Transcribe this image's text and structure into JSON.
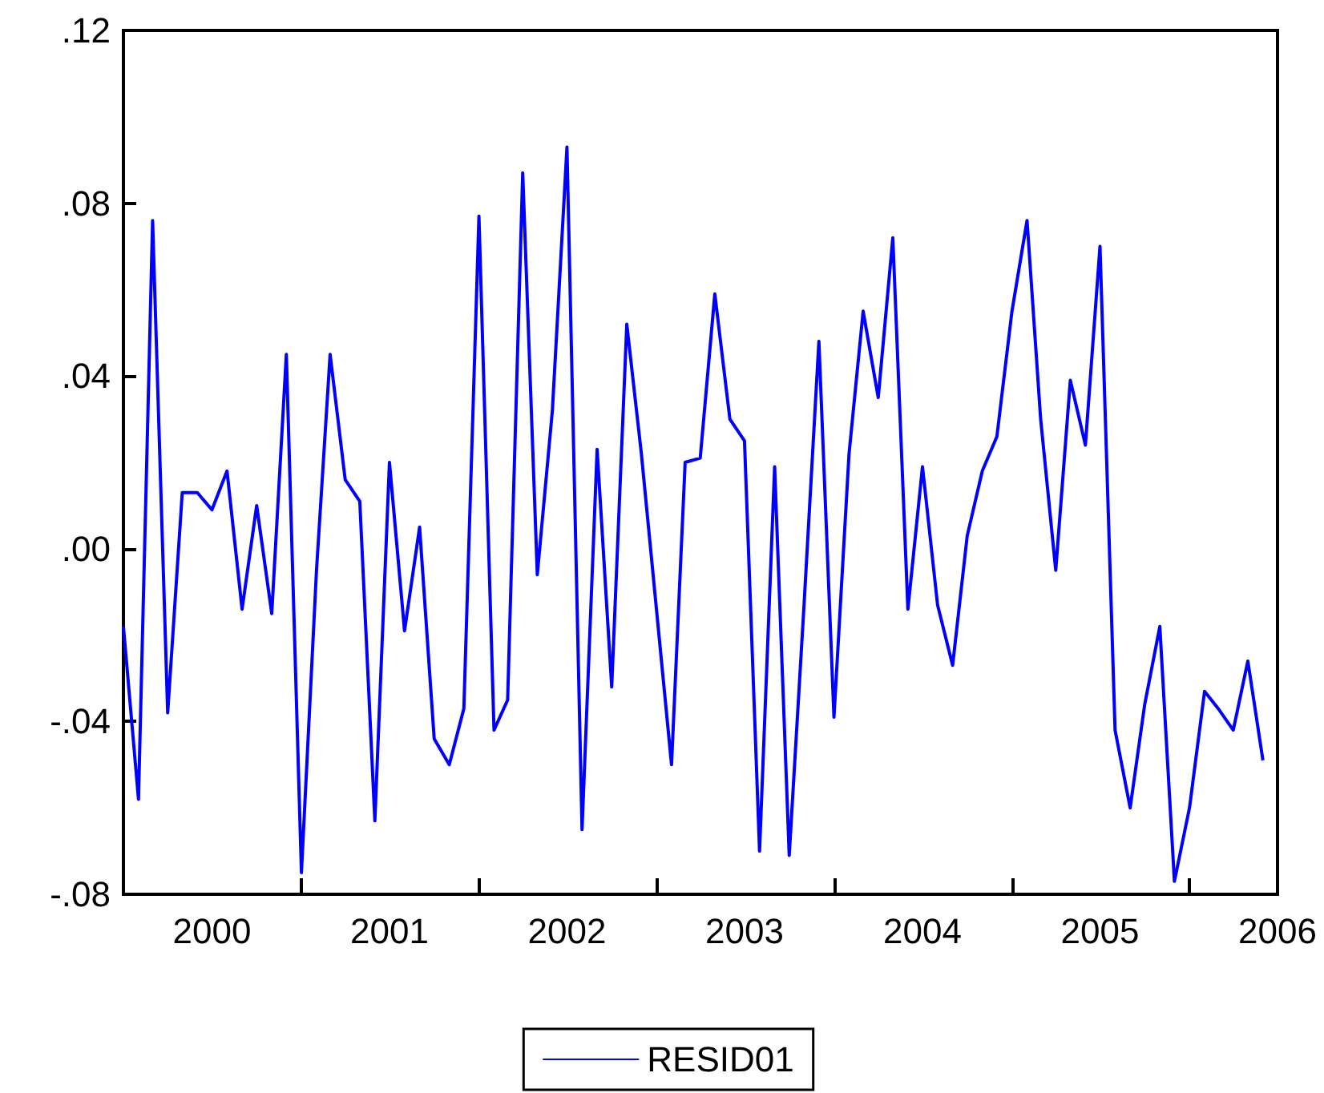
{
  "chart_data": {
    "type": "line",
    "x": [
      "2000-01",
      "2000-02",
      "2000-03",
      "2000-04",
      "2000-05",
      "2000-06",
      "2000-07",
      "2000-08",
      "2000-09",
      "2000-10",
      "2000-11",
      "2000-12",
      "2001-01",
      "2001-02",
      "2001-03",
      "2001-04",
      "2001-05",
      "2001-06",
      "2001-07",
      "2001-08",
      "2001-09",
      "2001-10",
      "2001-11",
      "2001-12",
      "2002-01",
      "2002-02",
      "2002-03",
      "2002-04",
      "2002-05",
      "2002-06",
      "2002-07",
      "2002-08",
      "2002-09",
      "2002-10",
      "2002-11",
      "2002-12",
      "2003-01",
      "2003-02",
      "2003-03",
      "2003-04",
      "2003-05",
      "2003-06",
      "2003-07",
      "2003-08",
      "2003-09",
      "2003-10",
      "2003-11",
      "2003-12",
      "2004-01",
      "2004-02",
      "2004-03",
      "2004-04",
      "2004-05",
      "2004-06",
      "2004-07",
      "2004-08",
      "2004-09",
      "2004-10",
      "2004-11",
      "2004-12",
      "2005-01",
      "2005-02",
      "2005-03",
      "2005-04",
      "2005-05",
      "2005-06",
      "2005-07",
      "2005-08",
      "2005-09",
      "2005-10",
      "2005-11",
      "2005-12",
      "2006-01",
      "2006-02",
      "2006-03",
      "2006-04",
      "2006-05",
      "2006-06"
    ],
    "series": [
      {
        "name": "RESID01",
        "color": "#0000ff",
        "values": [
          -0.018,
          -0.058,
          0.076,
          -0.038,
          0.013,
          0.013,
          0.009,
          0.018,
          -0.014,
          0.01,
          -0.015,
          0.045,
          -0.075,
          -0.005,
          0.045,
          0.016,
          0.011,
          -0.063,
          0.02,
          -0.019,
          0.005,
          -0.044,
          -0.05,
          -0.037,
          0.077,
          -0.042,
          -0.035,
          0.087,
          -0.006,
          0.032,
          0.093,
          -0.065,
          0.023,
          -0.032,
          0.052,
          0.022,
          -0.014,
          -0.05,
          0.02,
          0.021,
          0.059,
          0.03,
          0.025,
          -0.07,
          0.019,
          -0.071,
          -0.012,
          0.048,
          -0.039,
          0.022,
          0.055,
          0.035,
          0.072,
          -0.014,
          0.019,
          -0.013,
          -0.027,
          0.003,
          0.018,
          0.026,
          0.055,
          0.076,
          0.03,
          -0.005,
          0.039,
          0.024,
          0.07,
          -0.042,
          -0.06,
          -0.036,
          -0.018,
          -0.077,
          -0.06,
          -0.033,
          -0.037,
          -0.042,
          -0.026,
          -0.049
        ]
      }
    ],
    "xlim": [
      "2000-01",
      "2006-07"
    ],
    "xticks": [
      {
        "value": "2000-01",
        "label": null
      },
      {
        "value": "2000-07",
        "label": "2000"
      },
      {
        "value": "2001-01",
        "label": null
      },
      {
        "value": "2001-07",
        "label": "2001"
      },
      {
        "value": "2002-01",
        "label": null
      },
      {
        "value": "2002-07",
        "label": "2002"
      },
      {
        "value": "2003-01",
        "label": null
      },
      {
        "value": "2003-07",
        "label": "2003"
      },
      {
        "value": "2004-01",
        "label": null
      },
      {
        "value": "2004-07",
        "label": "2004"
      },
      {
        "value": "2005-01",
        "label": null
      },
      {
        "value": "2005-07",
        "label": "2005"
      },
      {
        "value": "2006-01",
        "label": null
      },
      {
        "value": "2006-07",
        "label": "2006"
      }
    ],
    "ylim": [
      -0.08,
      0.12
    ],
    "yticks": [
      {
        "value": -0.08,
        "label": "-.08"
      },
      {
        "value": -0.04,
        "label": "-.04"
      },
      {
        "value": 0,
        "label": ".00"
      },
      {
        "value": 0.04,
        "label": ".04"
      },
      {
        "value": 0.08,
        "label": ".08"
      },
      {
        "value": 0.12,
        "label": ".12"
      }
    ],
    "grid": false,
    "legend": "bottom",
    "marker": "none",
    "line_style": "solid"
  }
}
